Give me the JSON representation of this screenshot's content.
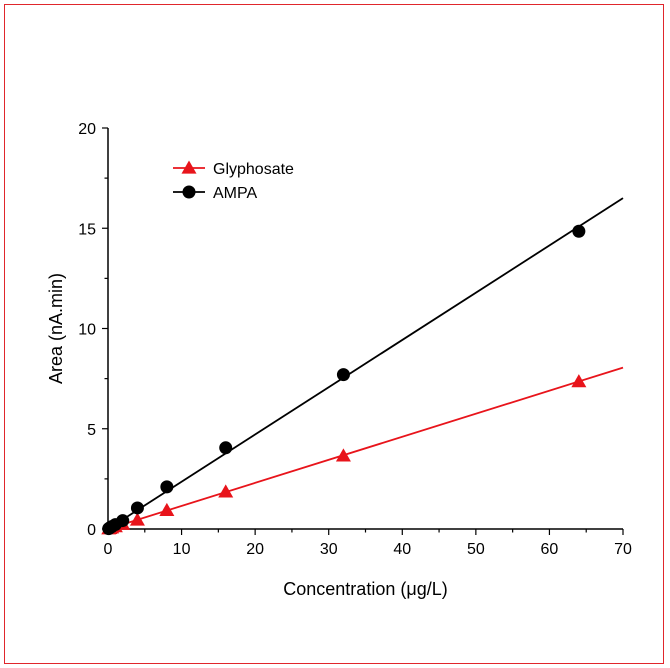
{
  "chart_data": {
    "type": "scatter",
    "title": "",
    "xlabel": "Concentration (μg/L)",
    "ylabel": "Area (nA.min)",
    "xlim": [
      0,
      70
    ],
    "ylim": [
      0,
      20
    ],
    "xticks": [
      0,
      10,
      20,
      30,
      40,
      50,
      60,
      70
    ],
    "yticks": [
      0,
      5,
      10,
      15,
      20
    ],
    "grid": false,
    "legend_position": "top-left",
    "series": [
      {
        "name": "Glyphosate",
        "color": "#e8141b",
        "marker": "triangle",
        "x": [
          0.1,
          0.25,
          0.5,
          1,
          2,
          4,
          8,
          16,
          32,
          64
        ],
        "y": [
          0.01,
          0.03,
          0.06,
          0.12,
          0.24,
          0.45,
          0.93,
          1.85,
          3.65,
          7.35
        ],
        "fit_line": {
          "x": [
            0,
            70
          ],
          "y": [
            0,
            8.05
          ]
        }
      },
      {
        "name": "AMPA",
        "color": "#000000",
        "marker": "circle",
        "x": [
          0.1,
          0.25,
          0.5,
          1,
          2,
          4,
          8,
          16,
          32,
          64
        ],
        "y": [
          0.02,
          0.06,
          0.12,
          0.22,
          0.42,
          1.05,
          2.1,
          4.05,
          7.7,
          14.85
        ],
        "fit_line": {
          "x": [
            0,
            70
          ],
          "y": [
            0,
            16.5
          ]
        }
      }
    ]
  }
}
